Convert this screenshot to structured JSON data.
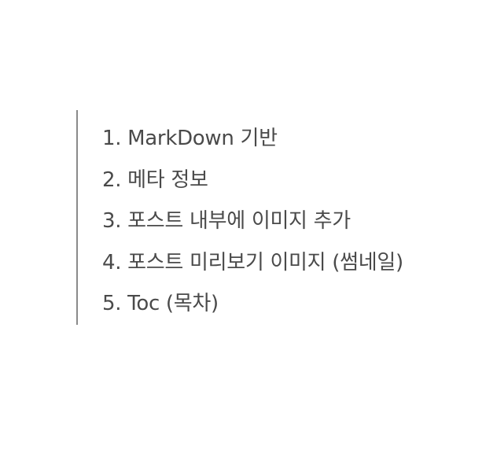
{
  "items": [
    {
      "label": "1. MarkDown 기반"
    },
    {
      "label": "2. 메타 정보"
    },
    {
      "label": "3. 포스트 내부에 이미지 추가"
    },
    {
      "label": "4. 포스트 미리보기 이미지 (썸네일)"
    },
    {
      "label": "5. Toc (목차)"
    }
  ]
}
